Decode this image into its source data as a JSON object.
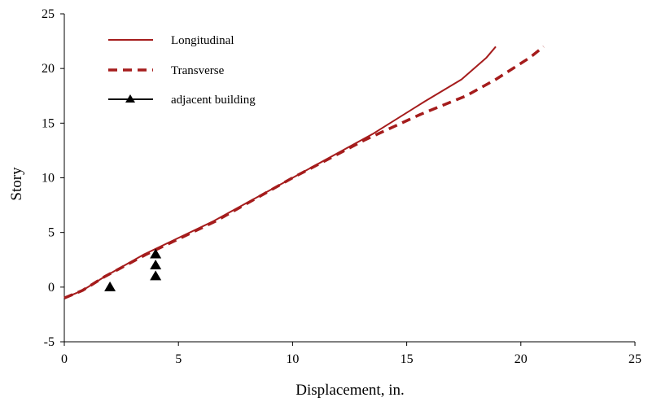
{
  "chart_data": {
    "type": "line",
    "xlabel": "Displacement, in.",
    "ylabel": "Story",
    "xlim": [
      0,
      25
    ],
    "ylim": [
      -5,
      25
    ],
    "xticks": [
      0,
      5,
      10,
      15,
      20,
      25
    ],
    "yticks": [
      -5,
      0,
      5,
      10,
      15,
      20,
      25
    ],
    "xtick_labels": [
      "0",
      "5",
      "10",
      "15",
      "20",
      "25"
    ],
    "ytick_labels": [
      "-5",
      "0",
      "5",
      "10",
      "15",
      "20",
      "25"
    ],
    "grid": false,
    "legend_position": "top-left",
    "series": [
      {
        "name": "Longitudinal",
        "style": "solid",
        "color": "#a51c1c",
        "x": [
          0,
          0.8,
          1.8,
          3.5,
          6.5,
          10.0,
          13.5,
          15.8,
          17.4,
          18.5,
          18.9
        ],
        "y": [
          -1,
          -0.3,
          1,
          3,
          6,
          10,
          14,
          17,
          19,
          21,
          22
        ]
      },
      {
        "name": "Transverse",
        "style": "dashed",
        "color": "#a51c1c",
        "x": [
          0,
          0.8,
          1.8,
          3.6,
          6.6,
          10.0,
          13.2,
          15.6,
          17.6,
          18.9,
          20.4,
          21.0
        ],
        "y": [
          -1,
          -0.3,
          1,
          3,
          6,
          10,
          13.5,
          15.8,
          17.5,
          19,
          21,
          22
        ]
      },
      {
        "name": "adjacent building",
        "style": "markers",
        "marker": "triangle",
        "color": "#000000",
        "x": [
          2,
          4,
          4,
          4
        ],
        "y": [
          0,
          1,
          2,
          3
        ]
      }
    ]
  }
}
